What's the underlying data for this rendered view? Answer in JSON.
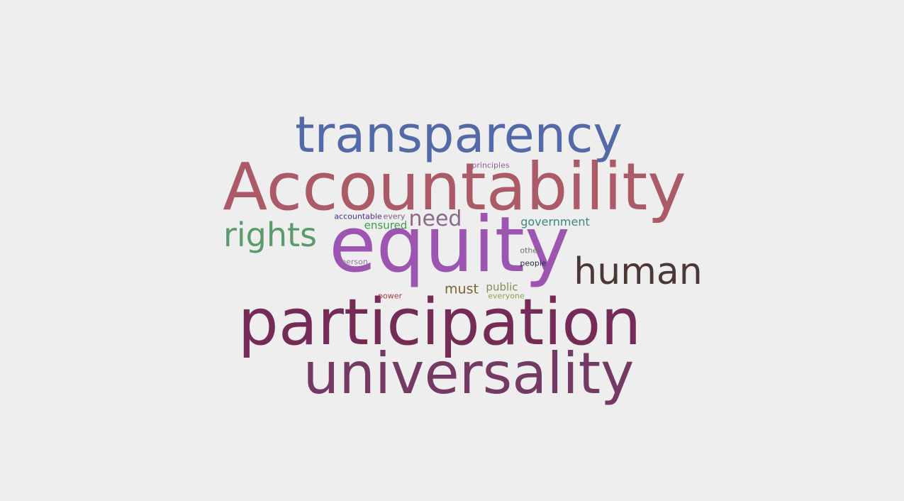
{
  "background_color": "#eeeeee",
  "words": [
    {
      "key": "transparency",
      "text": "transparency",
      "color": "#5469a8"
    },
    {
      "key": "accountability",
      "text": "Accountability",
      "color": "#aa5b67"
    },
    {
      "key": "equity",
      "text": "equity",
      "color": "#9c55b0"
    },
    {
      "key": "participation",
      "text": "participation",
      "color": "#742c57"
    },
    {
      "key": "universality",
      "text": "universality",
      "color": "#753a63"
    },
    {
      "key": "rights",
      "text": "rights",
      "color": "#5a9a6c"
    },
    {
      "key": "human",
      "text": "human",
      "color": "#4b3735"
    },
    {
      "key": "need",
      "text": "need",
      "color": "#8a6a8a"
    },
    {
      "key": "government",
      "text": "government",
      "color": "#3b8782"
    },
    {
      "key": "ensured",
      "text": "ensured",
      "color": "#3f9a49"
    },
    {
      "key": "accountable",
      "text": "accountable",
      "color": "#4a2b8a"
    },
    {
      "key": "every",
      "text": "every",
      "color": "#7a5e86"
    },
    {
      "key": "principles",
      "text": "principles",
      "color": "#8e5c9b"
    },
    {
      "key": "other",
      "text": "other",
      "color": "#6f6f6f"
    },
    {
      "key": "people",
      "text": "people",
      "color": "#2a2a4a"
    },
    {
      "key": "person",
      "text": "person",
      "color": "#8f70a0"
    },
    {
      "key": "must",
      "text": "must",
      "color": "#7b6430"
    },
    {
      "key": "public",
      "text": "public",
      "color": "#8b8b54"
    },
    {
      "key": "everyone",
      "text": "everyone",
      "color": "#85a84a"
    },
    {
      "key": "power",
      "text": "power",
      "color": "#a8383f"
    }
  ]
}
